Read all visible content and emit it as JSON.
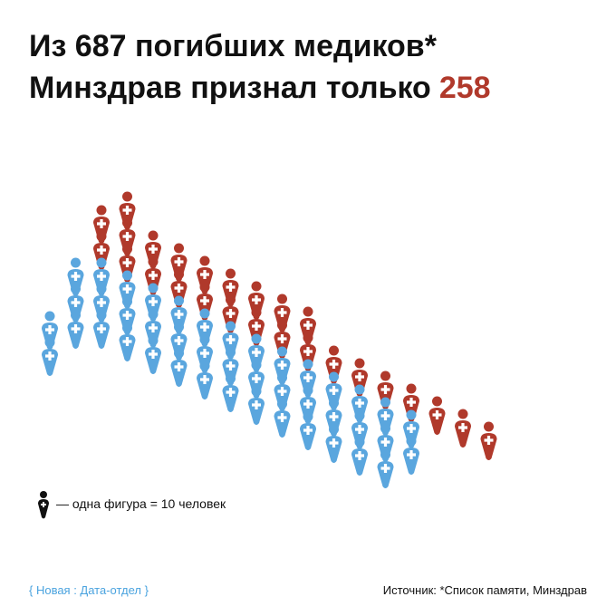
{
  "header": {
    "title_line1": "Из 687 погибших медиков*",
    "title_line2_prefix": "Минздрав признал только",
    "title_line2_highlight": "258"
  },
  "chart_data": {
    "type": "pictogram",
    "total": 687,
    "recognized": 258,
    "unit": 10,
    "legend": "— одна фигура = 10 человек",
    "colors": {
      "recognized": "#b0392b",
      "unrecognized": "#5aa6de"
    }
  },
  "footer": {
    "brand": "{ Новая : Дата-отдел }",
    "source": "Источник: *Список памяти, Минздрав"
  }
}
